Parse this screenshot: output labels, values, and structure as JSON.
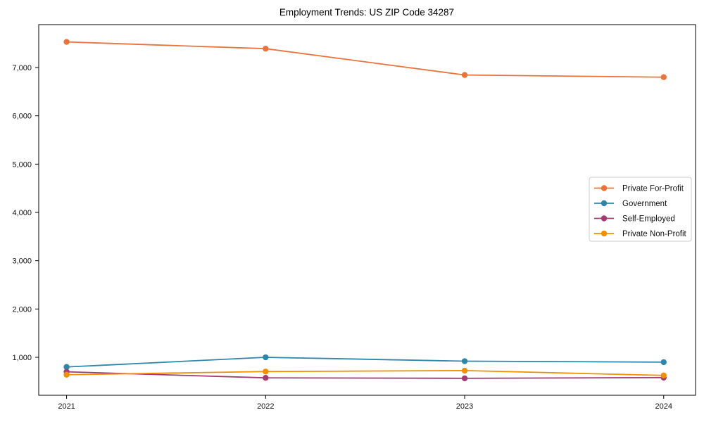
{
  "chart_data": {
    "type": "line",
    "title": "Employment Trends: US ZIP Code 34287",
    "xlabel": "",
    "ylabel": "",
    "x": [
      2021,
      2022,
      2023,
      2024
    ],
    "x_tick_labels": [
      "2021",
      "2022",
      "2023",
      "2024"
    ],
    "y_ticks": [
      1000,
      2000,
      3000,
      4000,
      5000,
      6000,
      7000
    ],
    "y_tick_labels": [
      "1,000",
      "2,000",
      "3,000",
      "4,000",
      "5,000",
      "6,000",
      "7,000"
    ],
    "xlim": [
      2020.86,
      2024.16
    ],
    "ylim": [
      214,
      7888
    ],
    "grid": false,
    "series": [
      {
        "name": "Private For-Profit",
        "color": "#E8743B",
        "values": [
          7530,
          7390,
          6845,
          6800
        ]
      },
      {
        "name": "Government",
        "color": "#2E86AB",
        "values": [
          800,
          1000,
          920,
          900
        ]
      },
      {
        "name": "Self-Employed",
        "color": "#A23B72",
        "values": [
          700,
          575,
          565,
          580
        ]
      },
      {
        "name": "Private Non-Profit",
        "color": "#F18F01",
        "values": [
          640,
          705,
          725,
          625
        ]
      }
    ],
    "legend": {
      "position": "center-right",
      "entries": [
        "Private For-Profit",
        "Government",
        "Self-Employed",
        "Private Non-Profit"
      ],
      "border_color": "#cccccc",
      "background": "#ffffff"
    },
    "colors": {
      "figure_background": "#ffffff",
      "plot_border": "#000000",
      "tick_text": "#111111"
    }
  }
}
